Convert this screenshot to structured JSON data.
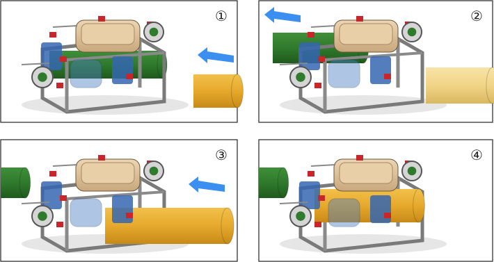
{
  "panels": [
    {
      "label": "①"
    },
    {
      "label": "②"
    },
    {
      "label": "③"
    },
    {
      "label": "④"
    }
  ]
}
